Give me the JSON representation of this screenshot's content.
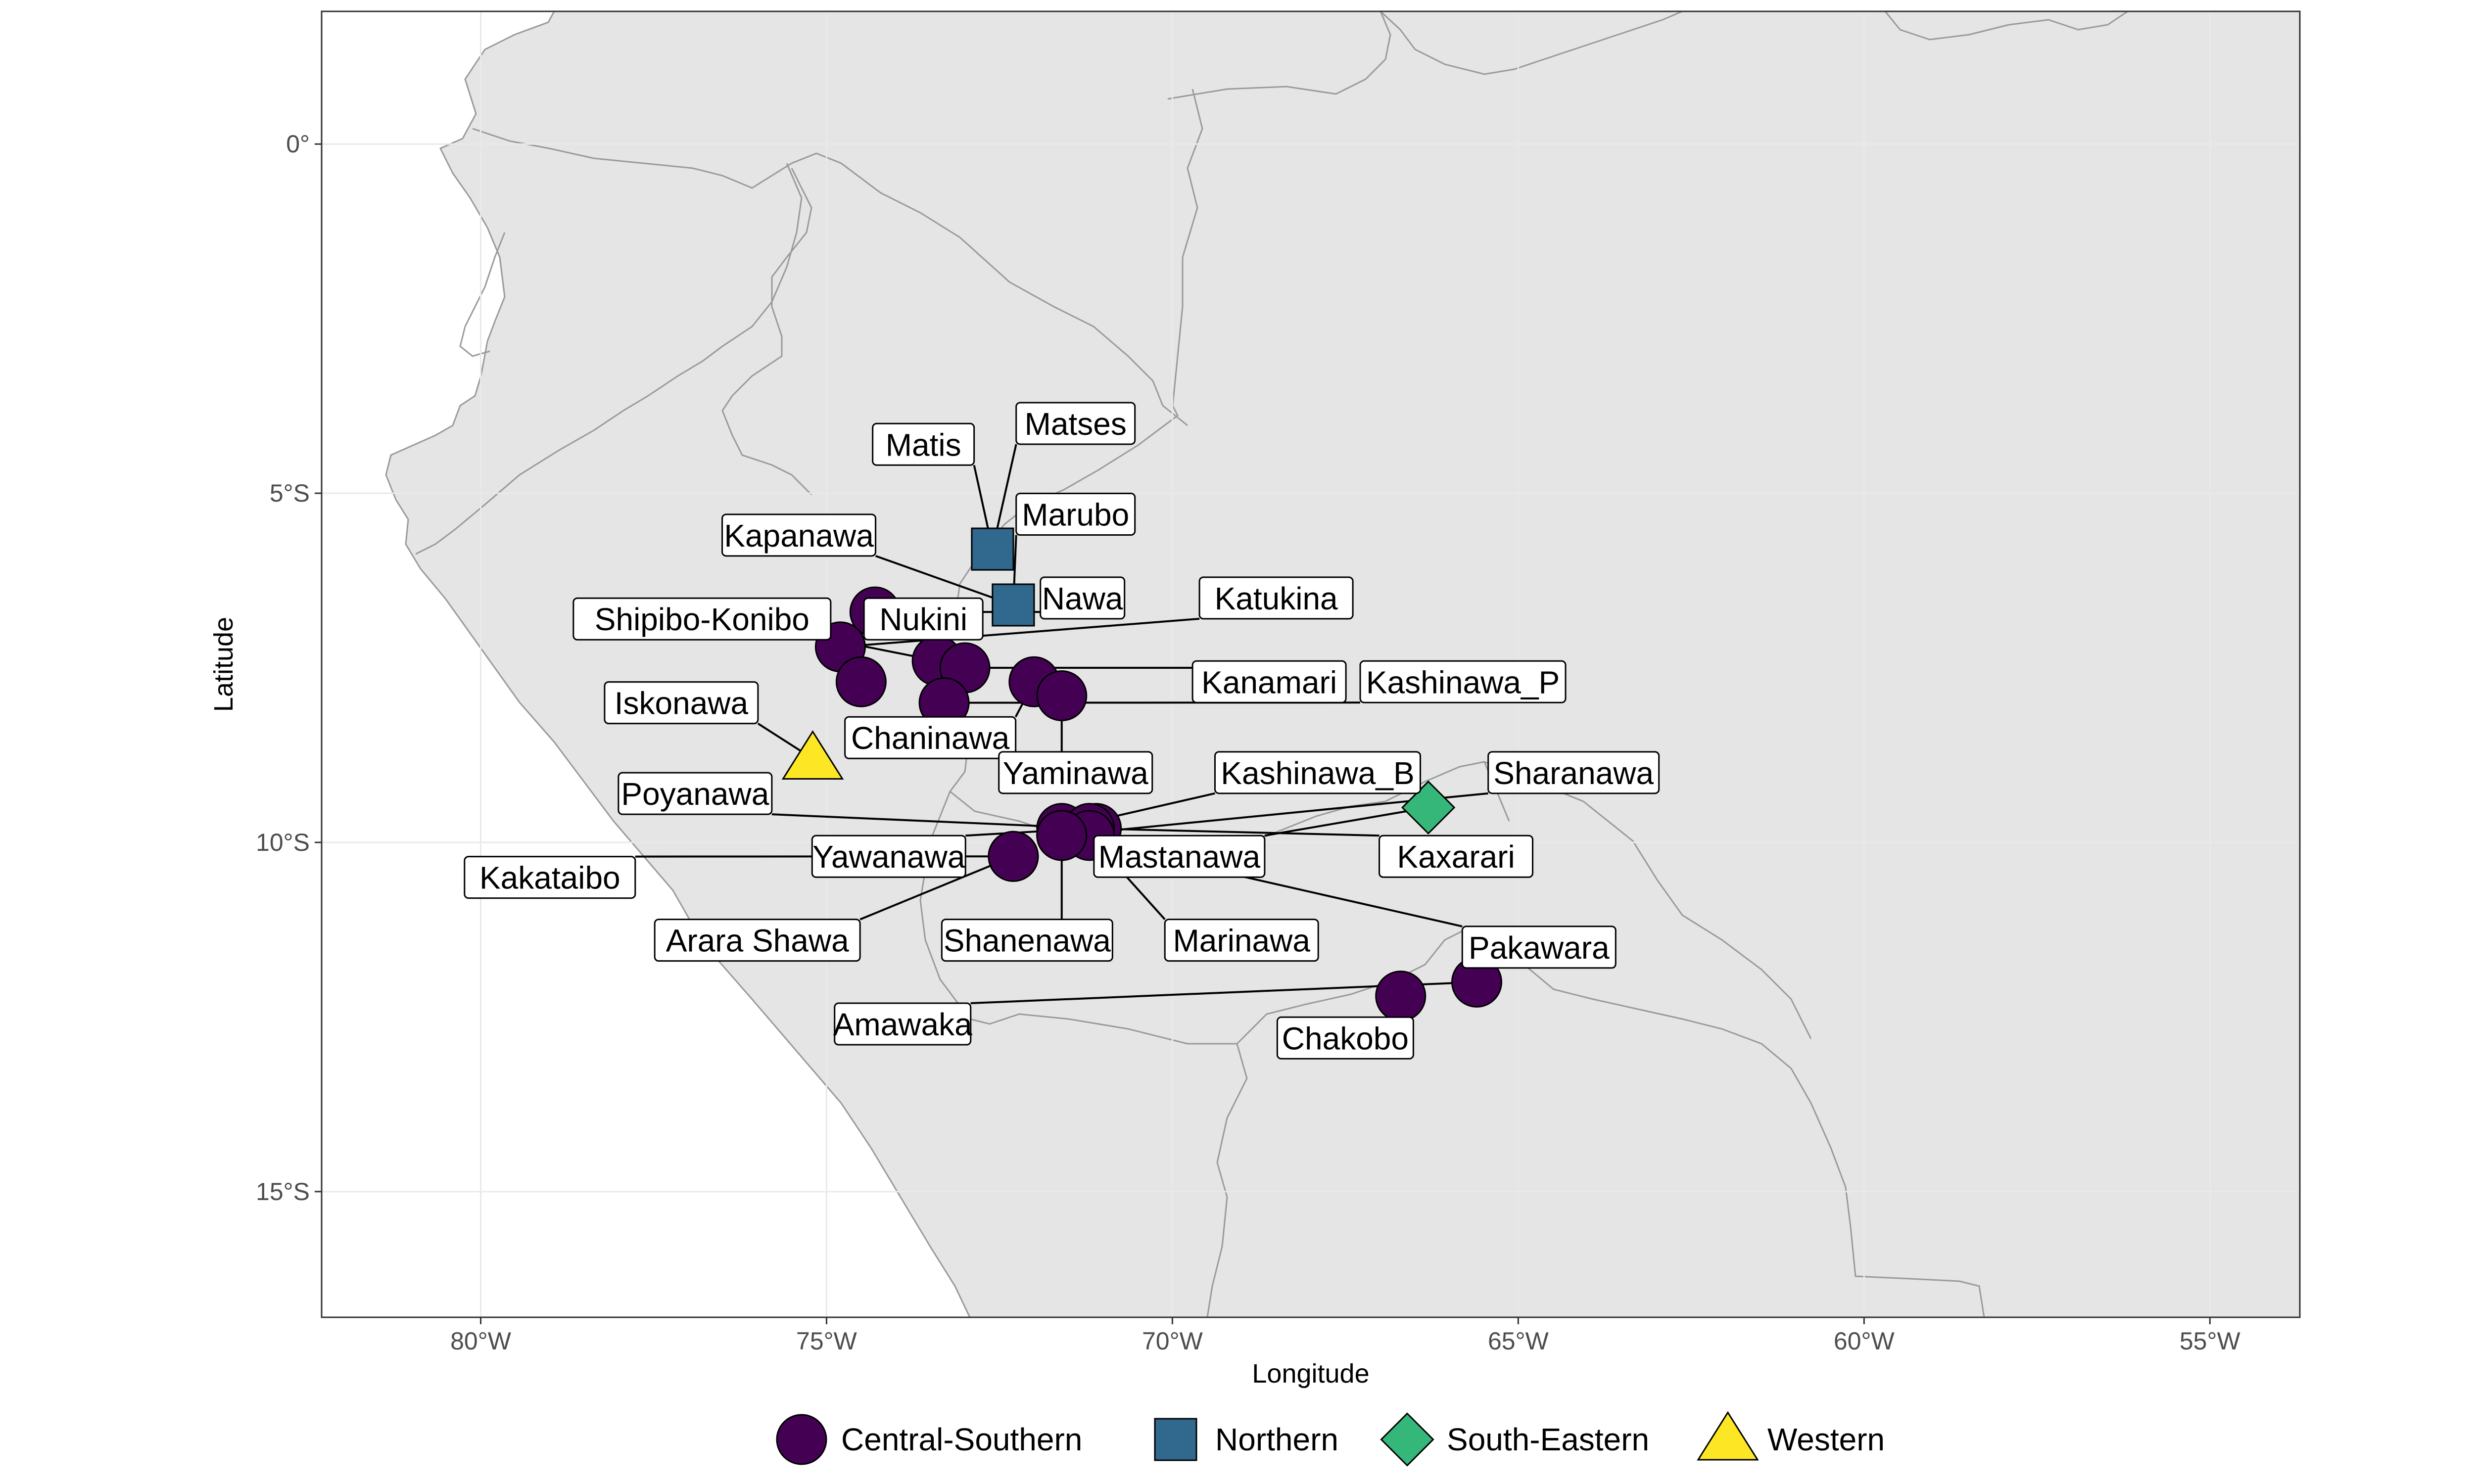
{
  "chart_data": {
    "type": "scatter",
    "subtype": "map",
    "xlabel": "Longitude",
    "ylabel": "Latitude",
    "xlim": [
      -82.3,
      -53.7
    ],
    "ylim": [
      -16.8,
      1.9
    ],
    "x_ticks": [
      {
        "value": -80,
        "label": "80°W"
      },
      {
        "value": -75,
        "label": "75°W"
      },
      {
        "value": -70,
        "label": "70°W"
      },
      {
        "value": -65,
        "label": "65°W"
      },
      {
        "value": -60,
        "label": "60°W"
      },
      {
        "value": -55,
        "label": "55°W"
      }
    ],
    "y_ticks": [
      {
        "value": 0,
        "label": "0°"
      },
      {
        "value": -5,
        "label": "5°S"
      },
      {
        "value": -10,
        "label": "10°S"
      },
      {
        "value": -15,
        "label": "15°S"
      }
    ],
    "grid": true,
    "legend_position": "bottom",
    "groups": [
      {
        "name": "Central-Southern",
        "shape": "circle",
        "color": "#440154"
      },
      {
        "name": "Northern",
        "shape": "square",
        "color": "#31688e"
      },
      {
        "name": "South-Eastern",
        "shape": "diamond",
        "color": "#35b779"
      },
      {
        "name": "Western",
        "shape": "triangle",
        "color": "#fde725"
      }
    ],
    "points": [
      {
        "name": "Matis",
        "lon": -72.6,
        "lat": -5.8,
        "group": "Northern"
      },
      {
        "name": "Matses",
        "lon": -72.6,
        "lat": -5.8,
        "group": "Northern"
      },
      {
        "name": "Marubo",
        "lon": -72.3,
        "lat": -6.6,
        "group": "Northern"
      },
      {
        "name": "Nawa",
        "lon": -72.3,
        "lat": -6.6,
        "group": "Northern"
      },
      {
        "name": "Kapanawa",
        "lon": -74.3,
        "lat": -6.7,
        "group": "Central-Southern"
      },
      {
        "name": "Shipibo-Konibo",
        "lon": -74.8,
        "lat": -7.2,
        "group": "Central-Southern"
      },
      {
        "name": "Nukini",
        "lon": -73.4,
        "lat": -7.4,
        "group": "Central-Southern"
      },
      {
        "name": "Iskonawa",
        "lon": -74.5,
        "lat": -7.7,
        "group": "Central-Southern"
      },
      {
        "name": "Chaninawa",
        "lon": -73.0,
        "lat": -7.5,
        "group": "Central-Southern"
      },
      {
        "name": "Poyanawa",
        "lon": -73.3,
        "lat": -8.0,
        "group": "Central-Southern"
      },
      {
        "name": "Kakataibo",
        "lon": -75.2,
        "lat": -8.8,
        "group": "Western"
      },
      {
        "name": "Katukina",
        "lon": -72.0,
        "lat": -7.7,
        "group": "Central-Southern"
      },
      {
        "name": "Kanamari",
        "lon": -71.6,
        "lat": -7.9,
        "group": "Central-Southern"
      },
      {
        "name": "Kashinawa_P",
        "lon": -71.6,
        "lat": -9.8,
        "group": "Central-Southern"
      },
      {
        "name": "Yaminawa",
        "lon": -71.6,
        "lat": -9.9,
        "group": "Central-Southern"
      },
      {
        "name": "Kashinawa_B",
        "lon": -71.1,
        "lat": -9.8,
        "group": "Central-Southern"
      },
      {
        "name": "Sharanawa",
        "lon": -71.2,
        "lat": -9.8,
        "group": "Central-Southern"
      },
      {
        "name": "Kaxarari",
        "lon": -66.3,
        "lat": -9.5,
        "group": "South-Eastern"
      },
      {
        "name": "Mastanawa",
        "lon": -71.2,
        "lat": -9.8,
        "group": "Central-Southern"
      },
      {
        "name": "Yawanawa",
        "lon": -72.3,
        "lat": -10.2,
        "group": "Central-Southern"
      },
      {
        "name": "Arara Shawa",
        "lon": -72.3,
        "lat": -10.2,
        "group": "Central-Southern"
      },
      {
        "name": "Shanenawa",
        "lon": -71.6,
        "lat": -9.9,
        "group": "Central-Southern"
      },
      {
        "name": "Marinawa",
        "lon": -71.2,
        "lat": -9.9,
        "group": "Central-Southern"
      },
      {
        "name": "Amawaka",
        "lon": -71.6,
        "lat": -9.9,
        "group": "Central-Southern"
      },
      {
        "name": "Pakawara",
        "lon": -65.6,
        "lat": -12.0,
        "group": "Central-Southern"
      },
      {
        "name": "Chakobo",
        "lon": -66.7,
        "lat": -12.2,
        "group": "Central-Southern"
      }
    ],
    "point_labels": [
      {
        "text": "Matis",
        "lon": -73.6,
        "lat": -4.3
      },
      {
        "text": "Matses",
        "lon": -71.4,
        "lat": -4.0
      },
      {
        "text": "Marubo",
        "lon": -71.4,
        "lat": -5.3
      },
      {
        "text": "Kapanawa",
        "lon": -75.4,
        "lat": -5.6
      },
      {
        "text": "Nawa",
        "lon": -71.3,
        "lat": -6.5
      },
      {
        "text": "Katukina",
        "lon": -68.5,
        "lat": -6.5
      },
      {
        "text": "Shipibo-Konibo",
        "lon": -76.8,
        "lat": -6.8
      },
      {
        "text": "Nukini",
        "lon": -73.6,
        "lat": -6.8
      },
      {
        "text": "Kanamari",
        "lon": -68.6,
        "lat": -7.7
      },
      {
        "text": "Kashinawa_P",
        "lon": -65.8,
        "lat": -7.7
      },
      {
        "text": "Iskonawa",
        "lon": -77.1,
        "lat": -8.0
      },
      {
        "text": "Chaninawa",
        "lon": -73.5,
        "lat": -8.5
      },
      {
        "text": "Yaminawa",
        "lon": -71.4,
        "lat": -9.0
      },
      {
        "text": "Kashinawa_B",
        "lon": -67.9,
        "lat": -9.0
      },
      {
        "text": "Sharanawa",
        "lon": -64.2,
        "lat": -9.0
      },
      {
        "text": "Poyanawa",
        "lon": -76.9,
        "lat": -9.3
      },
      {
        "text": "Yawanawa",
        "lon": -74.1,
        "lat": -10.2
      },
      {
        "text": "Mastanawa",
        "lon": -69.9,
        "lat": -10.2
      },
      {
        "text": "Kaxarari",
        "lon": -65.9,
        "lat": -10.2
      },
      {
        "text": "Kakataibo",
        "lon": -79.0,
        "lat": -10.5
      },
      {
        "text": "Arara Shawa",
        "lon": -76.0,
        "lat": -11.4
      },
      {
        "text": "Shanenawa",
        "lon": -72.1,
        "lat": -11.4
      },
      {
        "text": "Marinawa",
        "lon": -69.0,
        "lat": -11.4
      },
      {
        "text": "Pakawara",
        "lon": -64.7,
        "lat": -11.5
      },
      {
        "text": "Amawaka",
        "lon": -73.9,
        "lat": -12.6
      },
      {
        "text": "Chakobo",
        "lon": -67.5,
        "lat": -12.8
      }
    ],
    "colors": {
      "land": "#e5e5e5",
      "border": "#9a9a9a",
      "grid": "#e9e9e9",
      "panel_border": "#333333"
    }
  }
}
